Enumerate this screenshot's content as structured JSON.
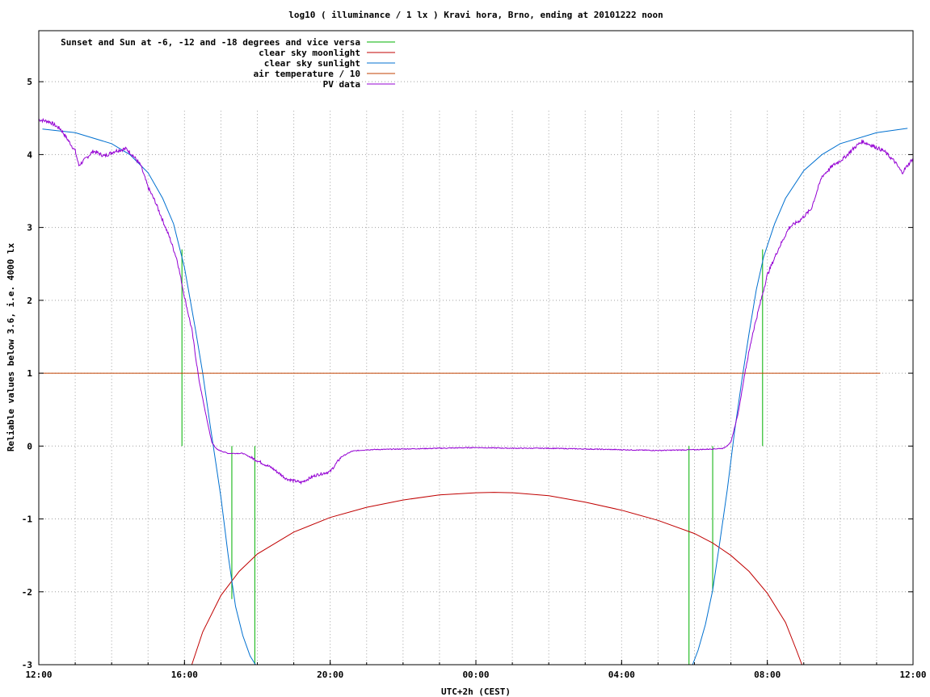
{
  "chart_data": {
    "type": "line",
    "title": "log10 ( illuminance / 1 lx ) Kravi hora, Brno, ending at 20101222 noon",
    "xlabel": "UTC+2h (CEST)",
    "ylabel": "Reliable values below 3.6, i.e. 4000 lx",
    "xlim": [
      0,
      24
    ],
    "ylim": [
      -3,
      5.7
    ],
    "x_ticks": [
      {
        "x": 0,
        "label": "12:00"
      },
      {
        "x": 4,
        "label": "16:00"
      },
      {
        "x": 8,
        "label": "20:00"
      },
      {
        "x": 12,
        "label": "00:00"
      },
      {
        "x": 16,
        "label": "04:00"
      },
      {
        "x": 20,
        "label": "08:00"
      },
      {
        "x": 24,
        "label": "12:00"
      }
    ],
    "y_ticks": [
      {
        "y": -3,
        "label": "-3"
      },
      {
        "y": -2,
        "label": "-2"
      },
      {
        "y": -1,
        "label": "-1"
      },
      {
        "y": 0,
        "label": "0"
      },
      {
        "y": 1,
        "label": "1"
      },
      {
        "y": 2,
        "label": "2"
      },
      {
        "y": 3,
        "label": "3"
      },
      {
        "y": 4,
        "label": "4"
      },
      {
        "y": 5,
        "label": "5"
      }
    ],
    "grid": true,
    "legend_position": "top-left",
    "series": [
      {
        "name": "Sunset and Sun at -6, -12 and -18 degrees and vice versa",
        "color": "#00b000",
        "kind": "vlines",
        "lines": [
          {
            "x": 3.93,
            "y0": 0,
            "y1": 2.7
          },
          {
            "x": 5.3,
            "y0": -2.1,
            "y1": 0
          },
          {
            "x": 5.93,
            "y0": -3,
            "y1": 0
          },
          {
            "x": 17.85,
            "y0": -3,
            "y1": 0
          },
          {
            "x": 18.5,
            "y0": -2.0,
            "y1": 0
          },
          {
            "x": 19.87,
            "y0": 0,
            "y1": 2.7
          }
        ]
      },
      {
        "name": "clear sky moonlight",
        "color": "#c00000",
        "kind": "line",
        "points": [
          [
            4.2,
            -3.0
          ],
          [
            4.5,
            -2.55
          ],
          [
            5.0,
            -2.05
          ],
          [
            5.5,
            -1.72
          ],
          [
            6.0,
            -1.48
          ],
          [
            7.0,
            -1.18
          ],
          [
            8.0,
            -0.98
          ],
          [
            9.0,
            -0.84
          ],
          [
            10.0,
            -0.74
          ],
          [
            11.0,
            -0.67
          ],
          [
            12.0,
            -0.64
          ],
          [
            12.5,
            -0.635
          ],
          [
            13.0,
            -0.64
          ],
          [
            14.0,
            -0.68
          ],
          [
            15.0,
            -0.77
          ],
          [
            16.0,
            -0.88
          ],
          [
            17.0,
            -1.02
          ],
          [
            18.0,
            -1.2
          ],
          [
            18.5,
            -1.33
          ],
          [
            19.0,
            -1.5
          ],
          [
            19.5,
            -1.72
          ],
          [
            20.0,
            -2.02
          ],
          [
            20.5,
            -2.42
          ],
          [
            20.8,
            -2.8
          ],
          [
            20.95,
            -3.0
          ]
        ]
      },
      {
        "name": "clear sky sunlight",
        "color": "#0070d0",
        "kind": "line",
        "points": [
          [
            0.1,
            4.35
          ],
          [
            1.0,
            4.3
          ],
          [
            2.0,
            4.15
          ],
          [
            2.5,
            4.0
          ],
          [
            3.0,
            3.75
          ],
          [
            3.4,
            3.4
          ],
          [
            3.7,
            3.05
          ],
          [
            4.0,
            2.45
          ],
          [
            4.3,
            1.6
          ],
          [
            4.5,
            1.0
          ],
          [
            4.7,
            0.3
          ],
          [
            4.85,
            -0.2
          ],
          [
            5.0,
            -0.7
          ],
          [
            5.2,
            -1.5
          ],
          [
            5.4,
            -2.2
          ],
          [
            5.6,
            -2.6
          ],
          [
            5.8,
            -2.88
          ],
          [
            5.95,
            -3.0
          ]
        ],
        "points_b": [
          [
            17.95,
            -3.0
          ],
          [
            18.1,
            -2.8
          ],
          [
            18.3,
            -2.45
          ],
          [
            18.5,
            -1.98
          ],
          [
            18.7,
            -1.3
          ],
          [
            18.9,
            -0.6
          ],
          [
            19.1,
            0.2
          ],
          [
            19.3,
            0.9
          ],
          [
            19.5,
            1.55
          ],
          [
            19.7,
            2.15
          ],
          [
            19.9,
            2.6
          ],
          [
            20.2,
            3.05
          ],
          [
            20.5,
            3.4
          ],
          [
            21.0,
            3.78
          ],
          [
            21.5,
            4.0
          ],
          [
            22.0,
            4.15
          ],
          [
            23.0,
            4.3
          ],
          [
            23.85,
            4.36
          ]
        ]
      },
      {
        "name": "air temperature / 10",
        "color": "#c04000",
        "kind": "line",
        "points": [
          [
            0,
            1.0
          ],
          [
            23.1,
            1.0
          ]
        ]
      },
      {
        "name": "PV data",
        "color": "#9400d3",
        "kind": "line",
        "noisy": true,
        "points": [
          [
            0,
            4.48
          ],
          [
            0.3,
            4.45
          ],
          [
            0.6,
            4.35
          ],
          [
            0.8,
            4.2
          ],
          [
            1.0,
            4.05
          ],
          [
            1.1,
            3.85
          ],
          [
            1.3,
            3.95
          ],
          [
            1.5,
            4.05
          ],
          [
            1.8,
            3.98
          ],
          [
            2.1,
            4.05
          ],
          [
            2.4,
            4.08
          ],
          [
            2.6,
            3.98
          ],
          [
            2.8,
            3.85
          ],
          [
            3.0,
            3.55
          ],
          [
            3.2,
            3.35
          ],
          [
            3.4,
            3.1
          ],
          [
            3.6,
            2.85
          ],
          [
            3.8,
            2.55
          ],
          [
            4.0,
            2.05
          ],
          [
            4.2,
            1.6
          ],
          [
            4.4,
            0.9
          ],
          [
            4.6,
            0.4
          ],
          [
            4.75,
            0.05
          ],
          [
            4.9,
            -0.05
          ],
          [
            5.2,
            -0.1
          ],
          [
            5.6,
            -0.1
          ],
          [
            6.0,
            -0.2
          ],
          [
            6.4,
            -0.3
          ],
          [
            6.8,
            -0.45
          ],
          [
            7.2,
            -0.5
          ],
          [
            7.6,
            -0.4
          ],
          [
            8.0,
            -0.35
          ],
          [
            8.3,
            -0.15
          ],
          [
            8.6,
            -0.07
          ],
          [
            9.0,
            -0.05
          ],
          [
            10.0,
            -0.04
          ],
          [
            11.0,
            -0.03
          ],
          [
            12.0,
            -0.02
          ],
          [
            13.0,
            -0.03
          ],
          [
            14.0,
            -0.03
          ],
          [
            15.0,
            -0.04
          ],
          [
            16.0,
            -0.05
          ],
          [
            17.0,
            -0.06
          ],
          [
            18.0,
            -0.05
          ],
          [
            18.5,
            -0.04
          ],
          [
            18.8,
            -0.03
          ],
          [
            19.0,
            0.05
          ],
          [
            19.2,
            0.45
          ],
          [
            19.4,
            1.05
          ],
          [
            19.6,
            1.55
          ],
          [
            19.8,
            1.95
          ],
          [
            20.0,
            2.35
          ],
          [
            20.3,
            2.7
          ],
          [
            20.6,
            3.0
          ],
          [
            20.9,
            3.1
          ],
          [
            21.2,
            3.25
          ],
          [
            21.5,
            3.7
          ],
          [
            21.8,
            3.85
          ],
          [
            22.1,
            3.95
          ],
          [
            22.4,
            4.1
          ],
          [
            22.6,
            4.18
          ],
          [
            22.9,
            4.12
          ],
          [
            23.2,
            4.05
          ],
          [
            23.5,
            3.9
          ],
          [
            23.7,
            3.75
          ],
          [
            24.0,
            3.95
          ]
        ]
      }
    ]
  }
}
